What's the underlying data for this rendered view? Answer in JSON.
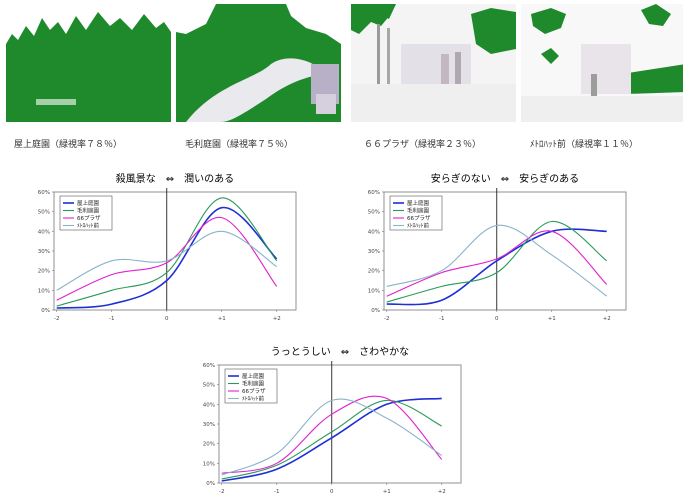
{
  "photos": [
    {
      "caption": "屋上庭園（緑視率７８％）"
    },
    {
      "caption": "毛利庭園（緑視率７５％）"
    },
    {
      "caption": "６６プラザ（緑視率２３％）"
    },
    {
      "caption": "ﾒﾄﾛﾊｯﾄ前（緑視率１１％）"
    }
  ],
  "colors": {
    "green_mask": "#1f8a2c",
    "s1": "#1f2fd6",
    "s2": "#2a9a5a",
    "s3": "#e020d0",
    "s4": "#8ab4c8"
  },
  "chart_data": [
    {
      "type": "line",
      "left_label": "殺風景な",
      "arrow": "⇔",
      "right_label": "潤いのある",
      "x": [
        -2,
        -1,
        0,
        1,
        2
      ],
      "x_ticks": [
        "-2",
        "-1",
        "0",
        "+1",
        "+2"
      ],
      "y_ticks": [
        "0%",
        "10%",
        "20%",
        "30%",
        "40%",
        "50%",
        "60%"
      ],
      "ylim": [
        0,
        60
      ],
      "legend_position": "top-left",
      "grid": false,
      "series": [
        {
          "name": "屋上庭園",
          "color": "#1f2fd6",
          "values": [
            1,
            3,
            15,
            52,
            26
          ]
        },
        {
          "name": "毛利庭園",
          "color": "#2a9a5a",
          "values": [
            2,
            10,
            19,
            57,
            25
          ]
        },
        {
          "name": "66プラザ",
          "color": "#e020d0",
          "values": [
            5,
            18,
            24,
            47,
            12
          ]
        },
        {
          "name": "ﾒﾄﾛﾊｯﾄ前",
          "color": "#8ab4c8",
          "values": [
            10,
            25,
            25,
            40,
            22
          ]
        }
      ]
    },
    {
      "type": "line",
      "left_label": "安らぎのない",
      "arrow": "⇔",
      "right_label": "安らぎのある",
      "x": [
        -2,
        -1,
        0,
        1,
        2
      ],
      "x_ticks": [
        "-2",
        "-1",
        "0",
        "+1",
        "+2"
      ],
      "y_ticks": [
        "0%",
        "10%",
        "20%",
        "30%",
        "40%",
        "50%",
        "60%"
      ],
      "ylim": [
        0,
        60
      ],
      "legend_position": "top-left",
      "grid": false,
      "series": [
        {
          "name": "屋上庭園",
          "color": "#1f2fd6",
          "values": [
            3,
            5,
            25,
            40,
            40
          ]
        },
        {
          "name": "毛利庭園",
          "color": "#2a9a5a",
          "values": [
            4,
            12,
            19,
            45,
            25
          ]
        },
        {
          "name": "66プラザ",
          "color": "#e020d0",
          "values": [
            7,
            19,
            26,
            40,
            13
          ]
        },
        {
          "name": "ﾒﾄﾛﾊｯﾄ前",
          "color": "#8ab4c8",
          "values": [
            12,
            20,
            43,
            28,
            7
          ]
        }
      ]
    },
    {
      "type": "line",
      "left_label": "うっとうしい",
      "arrow": "⇔",
      "right_label": "さわやかな",
      "x": [
        -2,
        -1,
        0,
        1,
        2
      ],
      "x_ticks": [
        "-2",
        "-1",
        "0",
        "+1",
        "+2"
      ],
      "y_ticks": [
        "0%",
        "10%",
        "20%",
        "30%",
        "40%",
        "50%",
        "60%"
      ],
      "ylim": [
        0,
        60
      ],
      "legend_position": "top-left",
      "grid": false,
      "series": [
        {
          "name": "屋上庭園",
          "color": "#1f2fd6",
          "values": [
            1,
            7,
            23,
            40,
            43
          ]
        },
        {
          "name": "毛利庭園",
          "color": "#2a9a5a",
          "values": [
            2,
            9,
            26,
            42,
            29
          ]
        },
        {
          "name": "66プラザ",
          "color": "#e020d0",
          "values": [
            5,
            10,
            35,
            43,
            12
          ]
        },
        {
          "name": "ﾒﾄﾛﾊｯﾄ前",
          "color": "#8ab4c8",
          "values": [
            4,
            15,
            42,
            33,
            14
          ]
        }
      ]
    }
  ]
}
